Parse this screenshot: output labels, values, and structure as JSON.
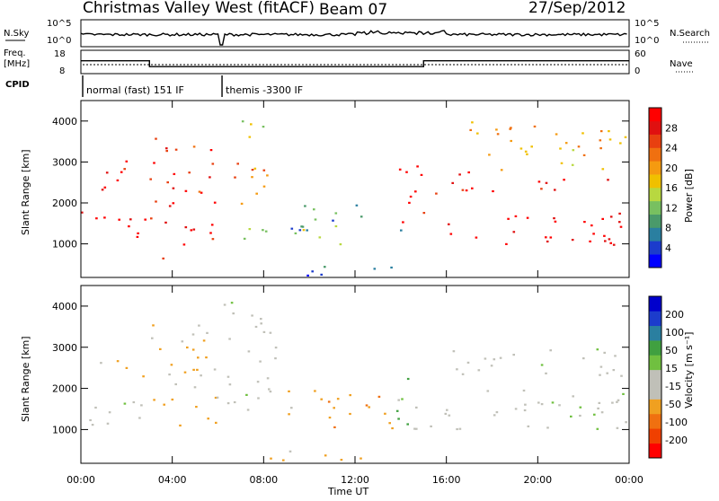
{
  "header": {
    "station": "Christmas Valley West (fitACF)",
    "beam": "Beam 07",
    "date": "27/Sep/2012"
  },
  "status_panel": {
    "nsky_label": "N.Sky",
    "nsky_ticks": [
      "10^5",
      "10^0"
    ],
    "nsearch_label": "N.Search",
    "nsearch_ticks": [
      "10^5",
      "10^0"
    ],
    "freq_label_line1": "Freq.",
    "freq_label_line2": "[MHz]",
    "freq_ticks": [
      "18",
      "8"
    ],
    "nave_label": "Nave",
    "nave_ticks": [
      "60",
      "0"
    ],
    "cpid_label": "CPID",
    "cpid_modes": [
      {
        "label": "normal (fast) 151 IF",
        "start_hour": 0.0,
        "end_hour": 6.1
      },
      {
        "label": "themis -3300 IF",
        "start_hour": 6.1,
        "end_hour": 24.0
      }
    ],
    "freq_steps": [
      {
        "start_hour": 0.0,
        "end_hour": 3.0,
        "mhz": 13.5
      },
      {
        "start_hour": 3.0,
        "end_hour": 6.1,
        "mhz": 11.0
      },
      {
        "start_hour": 6.1,
        "end_hour": 15.0,
        "mhz": 11.0
      },
      {
        "start_hour": 15.0,
        "end_hour": 24.0,
        "mhz": 13.5
      }
    ]
  },
  "axes": {
    "x_label": "Time UT",
    "x_ticks": [
      "00:00",
      "04:00",
      "08:00",
      "12:00",
      "16:00",
      "20:00",
      "00:00"
    ],
    "y_label": "Slant Range [km]",
    "y_ticks": [
      "1000",
      "2000",
      "3000",
      "4000"
    ]
  },
  "colorbars": {
    "power": {
      "title": "Power [dB]",
      "labels": [
        "28",
        "24",
        "20",
        "16",
        "12",
        "8",
        "4"
      ],
      "colors": [
        "#0000ff",
        "#1c3ccc",
        "#2a7fa0",
        "#4a9a6a",
        "#78c060",
        "#b8d840",
        "#f0c000",
        "#f59a10",
        "#f07010",
        "#e84010",
        "#e01010",
        "#ff0000"
      ]
    },
    "velocity": {
      "title": "Velocity [m s⁻¹]",
      "labels": [
        "200",
        "100",
        "50",
        "15",
        "-15",
        "-50",
        "-100",
        "-200"
      ],
      "colors": [
        "#ff0000",
        "#f04000",
        "#f07010",
        "#f0a020",
        "#c0c0b8",
        "#c0c0b8",
        "#70c040",
        "#40a040",
        "#2a7fa0",
        "#1c3ccc",
        "#0000cc"
      ]
    }
  },
  "chart_data": [
    {
      "type": "heatmap",
      "title": "Power [dB]",
      "xlabel": "Time UT",
      "ylabel": "Slant Range [km]",
      "xlim_hours": [
        0,
        24
      ],
      "ylim_km": [
        180,
        4500
      ],
      "colorbar_range_db": [
        0,
        30
      ],
      "regions": [
        {
          "t": [
            0,
            3
          ],
          "r": [
            1100,
            1850
          ],
          "db": 29
        },
        {
          "t": [
            0,
            2.7
          ],
          "r": [
            2300,
            2600
          ],
          "db": 28
        },
        {
          "t": [
            1,
            2.7
          ],
          "r": [
            2600,
            3200
          ],
          "db": 27
        },
        {
          "t": [
            3,
            6
          ],
          "r": [
            1000,
            3600
          ],
          "db": 26
        },
        {
          "t": [
            3.5,
            4
          ],
          "r": [
            300,
            700
          ],
          "db": 26
        },
        {
          "t": [
            6.2,
            8.2
          ],
          "r": [
            1700,
            3000
          ],
          "db": 20
        },
        {
          "t": [
            6.8,
            8
          ],
          "r": [
            3500,
            4300
          ],
          "db": 14
        },
        {
          "t": [
            7,
            11.5
          ],
          "r": [
            1000,
            1500
          ],
          "db": 12
        },
        {
          "t": [
            9,
            14
          ],
          "r": [
            1300,
            2000
          ],
          "db": 8
        },
        {
          "t": [
            8,
            14
          ],
          "r": [
            250,
            500
          ],
          "db": 5
        },
        {
          "t": [
            13.8,
            15
          ],
          "r": [
            1100,
            3000
          ],
          "db": 26
        },
        {
          "t": [
            15,
            24
          ],
          "r": [
            1000,
            1800
          ],
          "db": 29
        },
        {
          "t": [
            16.5,
            24
          ],
          "r": [
            2300,
            2600
          ],
          "db": 28
        },
        {
          "t": [
            15.3,
            17
          ],
          "r": [
            2200,
            3000
          ],
          "db": 27
        },
        {
          "t": [
            17,
            24
          ],
          "r": [
            2800,
            4000
          ],
          "db": 18
        }
      ]
    },
    {
      "type": "heatmap",
      "title": "Velocity [m s⁻¹]",
      "xlabel": "Time UT",
      "ylabel": "Slant Range [km]",
      "xlim_hours": [
        0,
        24
      ],
      "ylim_km": [
        180,
        4500
      ],
      "colorbar_range_ms": [
        -200,
        200
      ],
      "regions": [
        {
          "t": [
            0,
            3
          ],
          "r": [
            1100,
            1850
          ],
          "v": 0
        },
        {
          "t": [
            0,
            2.7
          ],
          "r": [
            2300,
            2700
          ],
          "v": -60
        },
        {
          "t": [
            3,
            6
          ],
          "r": [
            1000,
            3600
          ],
          "v": -60
        },
        {
          "t": [
            6.2,
            8.5
          ],
          "r": [
            1500,
            4300
          ],
          "v": 0
        },
        {
          "t": [
            9,
            14
          ],
          "r": [
            1000,
            2000
          ],
          "v": -80
        },
        {
          "t": [
            8,
            14
          ],
          "r": [
            250,
            500
          ],
          "v": -70
        },
        {
          "t": [
            13.8,
            14.5
          ],
          "r": [
            1100,
            2800
          ],
          "v": 60
        },
        {
          "t": [
            14.5,
            24
          ],
          "r": [
            1000,
            2000
          ],
          "v": 0
        },
        {
          "t": [
            16,
            24
          ],
          "r": [
            2300,
            3000
          ],
          "v": 0
        }
      ]
    }
  ]
}
